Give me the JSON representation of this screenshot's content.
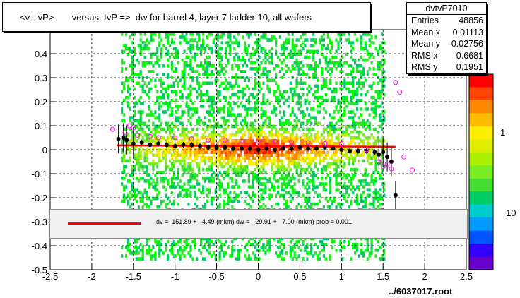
{
  "title": "<v - vP>       versus  tvP =>  dw for barrel 4, layer 7 ladder 10, all wafers",
  "stats": {
    "name": "dvtvP7010",
    "rows": [
      {
        "label": "Entries",
        "value": "48856"
      },
      {
        "label": "Mean x",
        "value": "0.01113"
      },
      {
        "label": "Mean y",
        "value": "0.02756"
      },
      {
        "label": "RMS x",
        "value": "0.6681"
      },
      {
        "label": "RMS y",
        "value": "0.1951"
      }
    ]
  },
  "fit_text": "dv =  151.89 +   4.49 (mkm) dw =  -29.91 +   7.00 (mkm) prob = 0.001",
  "footer": "../6037017.root",
  "chart_data": {
    "type": "heatmap",
    "xlim": [
      -2.5,
      2.5
    ],
    "ylim": [
      -0.5,
      0.5
    ],
    "x_ticks": [
      "-2.5",
      "-2",
      "-1.5",
      "-1",
      "-0.5",
      "0",
      "0.5",
      "1",
      "1.5",
      "2",
      "2.5"
    ],
    "y_ticks": [
      "-0.5",
      "-0.4",
      "-0.3",
      "-0.2",
      "-0.1",
      "0",
      "0.1",
      "0.2",
      "0.3",
      "0.4",
      "0.5"
    ],
    "z_ticks": [
      "1",
      "10"
    ],
    "grid": true,
    "colors": {
      "fit_line": "#ff0000",
      "profile_points": "#000000",
      "profile_markers": "#ff00ff",
      "fit_box": "#f0f0f0"
    },
    "fit_line": {
      "x": [
        -1.7,
        1.65
      ],
      "y": [
        0.018,
        0.012
      ]
    },
    "profile_black": [
      {
        "x": -1.68,
        "y": 0.045
      },
      {
        "x": -1.62,
        "y": 0.05
      },
      {
        "x": -1.58,
        "y": 0.04
      },
      {
        "x": -1.5,
        "y": 0.025
      },
      {
        "x": -1.4,
        "y": 0.03
      },
      {
        "x": -1.3,
        "y": 0.02
      },
      {
        "x": -1.2,
        "y": 0.025
      },
      {
        "x": -1.1,
        "y": 0.02
      },
      {
        "x": -1.0,
        "y": 0.015
      },
      {
        "x": -0.9,
        "y": 0.02
      },
      {
        "x": -0.8,
        "y": 0.02
      },
      {
        "x": -0.7,
        "y": 0.015
      },
      {
        "x": -0.6,
        "y": 0.01
      },
      {
        "x": -0.5,
        "y": 0.01
      },
      {
        "x": -0.4,
        "y": 0.01
      },
      {
        "x": -0.3,
        "y": 0.005
      },
      {
        "x": -0.2,
        "y": 0.005
      },
      {
        "x": -0.1,
        "y": 0.005
      },
      {
        "x": 0.0,
        "y": 0.0
      },
      {
        "x": 0.1,
        "y": 0.005
      },
      {
        "x": 0.2,
        "y": 0.0
      },
      {
        "x": 0.3,
        "y": 0.005
      },
      {
        "x": 0.4,
        "y": 0.005
      },
      {
        "x": 0.5,
        "y": 0.01
      },
      {
        "x": 0.6,
        "y": 0.005
      },
      {
        "x": 0.7,
        "y": 0.005
      },
      {
        "x": 0.8,
        "y": 0.01
      },
      {
        "x": 0.9,
        "y": 0.005
      },
      {
        "x": 1.0,
        "y": 0.0
      },
      {
        "x": 1.1,
        "y": -0.005
      },
      {
        "x": 1.2,
        "y": -0.005
      },
      {
        "x": 1.3,
        "y": -0.005
      },
      {
        "x": 1.4,
        "y": -0.01
      },
      {
        "x": 1.45,
        "y": -0.02
      },
      {
        "x": 1.5,
        "y": -0.01
      },
      {
        "x": 1.55,
        "y": -0.03
      },
      {
        "x": 1.6,
        "y": -0.05
      },
      {
        "x": 1.65,
        "y": -0.19
      }
    ],
    "profile_magenta": [
      {
        "x": -1.75,
        "y": 0.085
      },
      {
        "x": -1.6,
        "y": 0.07
      },
      {
        "x": -1.55,
        "y": 0.1
      },
      {
        "x": -1.5,
        "y": 0.09
      },
      {
        "x": -1.45,
        "y": 0.06
      },
      {
        "x": -1.3,
        "y": 0.055
      },
      {
        "x": -1.2,
        "y": 0.05
      },
      {
        "x": -1.0,
        "y": 0.05
      },
      {
        "x": -0.8,
        "y": 0.045
      },
      {
        "x": -0.6,
        "y": 0.04
      },
      {
        "x": -0.4,
        "y": 0.04
      },
      {
        "x": -0.2,
        "y": 0.035
      },
      {
        "x": 0.0,
        "y": 0.035
      },
      {
        "x": 0.2,
        "y": 0.035
      },
      {
        "x": 0.4,
        "y": 0.03
      },
      {
        "x": 0.6,
        "y": 0.03
      },
      {
        "x": 0.8,
        "y": 0.025
      },
      {
        "x": 1.0,
        "y": 0.025
      },
      {
        "x": 1.3,
        "y": 0.0
      },
      {
        "x": 1.45,
        "y": -0.05
      },
      {
        "x": 1.5,
        "y": -0.07
      },
      {
        "x": 1.55,
        "y": -0.06
      },
      {
        "x": 1.6,
        "y": -0.08
      },
      {
        "x": 1.65,
        "y": 0.28
      },
      {
        "x": 1.7,
        "y": 0.24
      },
      {
        "x": 1.75,
        "y": -0.03
      },
      {
        "x": 1.85,
        "y": -0.085
      }
    ]
  }
}
